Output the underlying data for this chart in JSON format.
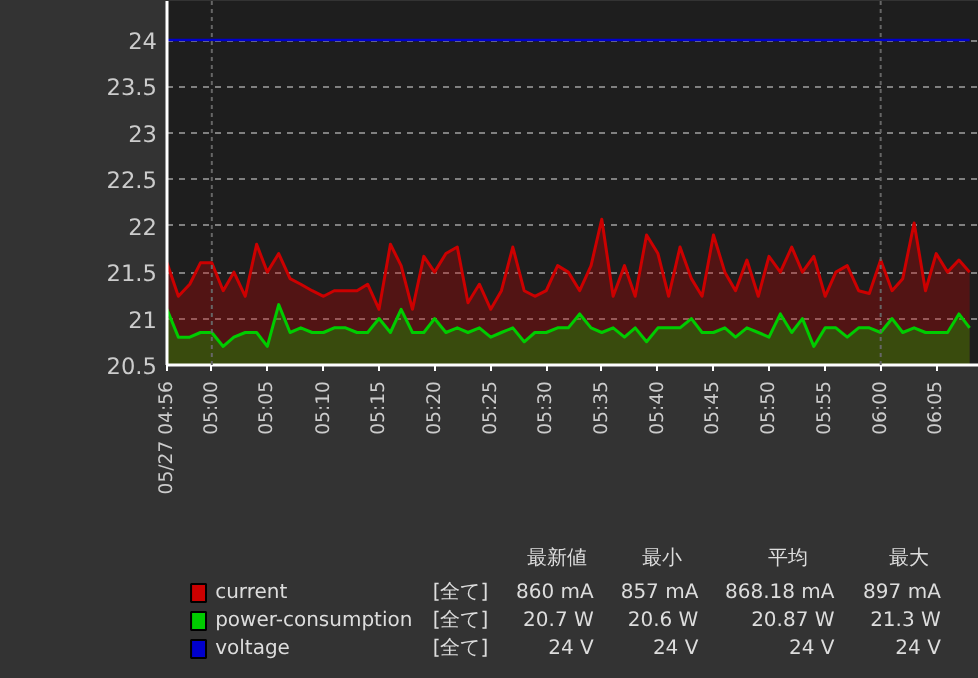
{
  "chart_data": {
    "type": "area",
    "x": [
      4.933,
      4.95,
      4.967,
      4.983,
      5.0,
      5.017,
      5.033,
      5.05,
      5.067,
      5.083,
      5.1,
      5.117,
      5.133,
      5.15,
      5.167,
      5.183,
      5.2,
      5.217,
      5.233,
      5.25,
      5.267,
      5.283,
      5.3,
      5.317,
      5.333,
      5.35,
      5.367,
      5.383,
      5.4,
      5.417,
      5.433,
      5.45,
      5.467,
      5.483,
      5.5,
      5.517,
      5.533,
      5.55,
      5.567,
      5.583,
      5.6,
      5.617,
      5.633,
      5.65,
      5.667,
      5.683,
      5.7,
      5.717,
      5.733,
      5.75,
      5.767,
      5.783,
      5.8,
      5.817,
      5.833,
      5.85,
      5.867,
      5.883,
      5.9,
      5.917,
      5.933,
      5.95,
      5.967,
      5.983,
      6.0,
      6.017,
      6.033,
      6.05,
      6.067,
      6.083,
      6.1,
      6.117,
      6.133
    ],
    "series": [
      {
        "name": "current",
        "color": "#cc0000",
        "values": [
          21.6,
          21.24,
          21.37,
          21.6,
          21.6,
          21.3,
          21.5,
          21.24,
          21.8,
          21.5,
          21.7,
          21.43,
          21.37,
          21.3,
          21.24,
          21.3,
          21.3,
          21.3,
          21.37,
          21.1,
          21.8,
          21.57,
          21.1,
          21.67,
          21.5,
          21.7,
          21.77,
          21.17,
          21.37,
          21.1,
          21.3,
          21.77,
          21.3,
          21.24,
          21.3,
          21.57,
          21.5,
          21.3,
          21.57,
          22.07,
          21.24,
          21.57,
          21.24,
          21.9,
          21.7,
          21.24,
          21.77,
          21.43,
          21.24,
          21.9,
          21.5,
          21.3,
          21.63,
          21.24,
          21.67,
          21.5,
          21.77,
          21.5,
          21.67,
          21.24,
          21.5,
          21.57,
          21.3,
          21.27,
          21.63,
          21.3,
          21.43,
          22.03,
          21.3,
          21.7,
          21.5,
          21.63,
          21.5
        ]
      },
      {
        "name": "power-consumption",
        "color": "#00cc00",
        "values": [
          21.1,
          20.8,
          20.8,
          20.85,
          20.85,
          20.7,
          20.8,
          20.85,
          20.85,
          20.7,
          21.15,
          20.85,
          20.9,
          20.85,
          20.85,
          20.9,
          20.9,
          20.85,
          20.85,
          21.0,
          20.85,
          21.1,
          20.85,
          20.85,
          21.0,
          20.85,
          20.9,
          20.85,
          20.9,
          20.8,
          20.85,
          20.9,
          20.75,
          20.85,
          20.85,
          20.9,
          20.9,
          21.05,
          20.9,
          20.85,
          20.9,
          20.8,
          20.9,
          20.75,
          20.9,
          20.9,
          20.9,
          21.0,
          20.85,
          20.85,
          20.9,
          20.8,
          20.9,
          20.85,
          20.8,
          21.05,
          20.85,
          21.0,
          20.7,
          20.9,
          20.9,
          20.8,
          20.9,
          20.9,
          20.85,
          21.0,
          20.85,
          20.9,
          20.85,
          20.85,
          20.85,
          21.05,
          20.9
        ]
      },
      {
        "name": "voltage",
        "color": "#0000cc",
        "type": "line",
        "values": [
          24,
          24,
          24,
          24,
          24,
          24,
          24,
          24,
          24,
          24,
          24,
          24,
          24,
          24,
          24,
          24,
          24,
          24,
          24,
          24,
          24,
          24,
          24,
          24,
          24,
          24,
          24,
          24,
          24,
          24,
          24,
          24,
          24,
          24,
          24,
          24,
          24,
          24,
          24,
          24,
          24,
          24,
          24,
          24,
          24,
          24,
          24,
          24,
          24,
          24,
          24,
          24,
          24,
          24,
          24,
          24,
          24,
          24,
          24,
          24,
          24,
          24,
          24,
          24,
          24,
          24,
          24,
          24,
          24,
          24,
          24,
          24,
          24
        ]
      }
    ],
    "xlim": [
      4.933,
      6.147
    ],
    "xticks": [
      {
        "value": 4.933,
        "label": "05/27 04:56"
      },
      {
        "value": 5.0,
        "label": "05:00"
      },
      {
        "value": 5.083,
        "label": "05:05"
      },
      {
        "value": 5.167,
        "label": "05:10"
      },
      {
        "value": 5.25,
        "label": "05:15"
      },
      {
        "value": 5.333,
        "label": "05:20"
      },
      {
        "value": 5.417,
        "label": "05:25"
      },
      {
        "value": 5.5,
        "label": "05:30"
      },
      {
        "value": 5.583,
        "label": "05:35"
      },
      {
        "value": 5.667,
        "label": "05:40"
      },
      {
        "value": 5.75,
        "label": "05:45"
      },
      {
        "value": 5.833,
        "label": "05:50"
      },
      {
        "value": 5.917,
        "label": "05:55"
      },
      {
        "value": 6.0,
        "label": "06:00"
      },
      {
        "value": 6.083,
        "label": "06:05"
      }
    ],
    "ylim": [
      20.5,
      24.42
    ],
    "yticks": [
      20.5,
      21,
      21.5,
      22,
      22.5,
      23,
      23.5,
      24
    ],
    "grid": "y",
    "ref_lines": [
      {
        "axis": "x",
        "value": 5.0,
        "label": null,
        "line_style": "dashed",
        "color": "#666666"
      },
      {
        "axis": "x",
        "value": 6.0,
        "label": null,
        "line_style": "dashed",
        "color": "#666666"
      }
    ],
    "legend": "bottom",
    "annotations": [
      "最新値",
      "最小",
      "平均",
      "最大",
      "[全て]",
      "860 mA",
      "857 mA",
      "868.18 mA",
      "897 mA",
      "[全て]",
      "20.7 W",
      "20.6 W",
      "20.87 W",
      "21.3 W",
      "[全て]",
      "24 V",
      "24 V",
      "24 V",
      "24 V"
    ]
  }
}
